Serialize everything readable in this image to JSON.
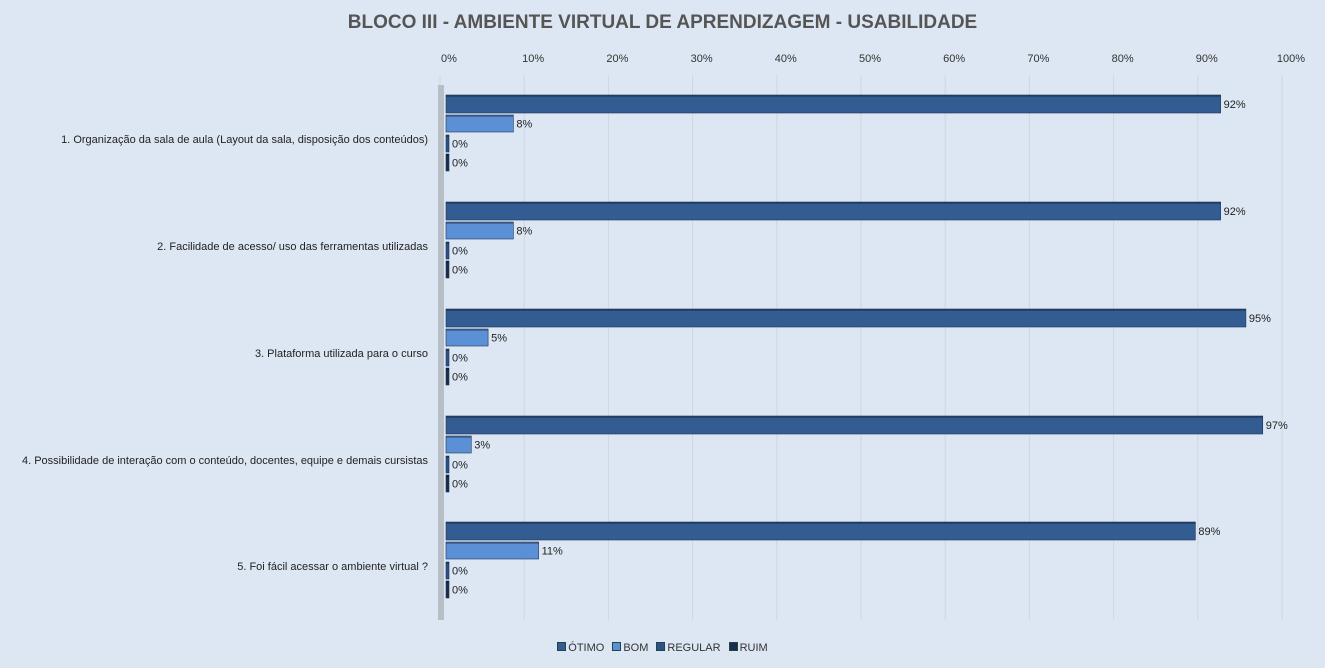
{
  "chart_data": {
    "type": "bar",
    "orientation": "horizontal",
    "title": "BLOCO III - AMBIENTE VIRTUAL DE APRENDIZAGEM - USABILIDADE",
    "xlim": [
      0,
      100
    ],
    "ticks": [
      "0%",
      "10%",
      "20%",
      "30%",
      "40%",
      "50%",
      "60%",
      "70%",
      "80%",
      "90%",
      "100%"
    ],
    "categories": [
      "1. Organização da sala de aula (Layout da sala, disposição dos conteúdos)",
      "2. Facilidade de acesso/ uso das ferramentas utilizadas",
      "3. Plataforma utilizada para o curso",
      "4. Possibilidade de interação com o conteúdo, docentes, equipe e demais cursistas",
      "5. Foi fácil acessar o ambiente virtual ?"
    ],
    "series": [
      {
        "name": "ÓTIMO",
        "color": "#335d92",
        "values": [
          92,
          92,
          95,
          97,
          89
        ]
      },
      {
        "name": "BOM",
        "color": "#5b8fd6",
        "values": [
          8,
          8,
          5,
          3,
          11
        ]
      },
      {
        "name": "REGULAR",
        "color": "#2b5286",
        "values": [
          0,
          0,
          0,
          0,
          0
        ]
      },
      {
        "name": "RUIM",
        "color": "#1a2e4c",
        "values": [
          0,
          0,
          0,
          0,
          0
        ]
      }
    ],
    "legend": "bottom"
  }
}
